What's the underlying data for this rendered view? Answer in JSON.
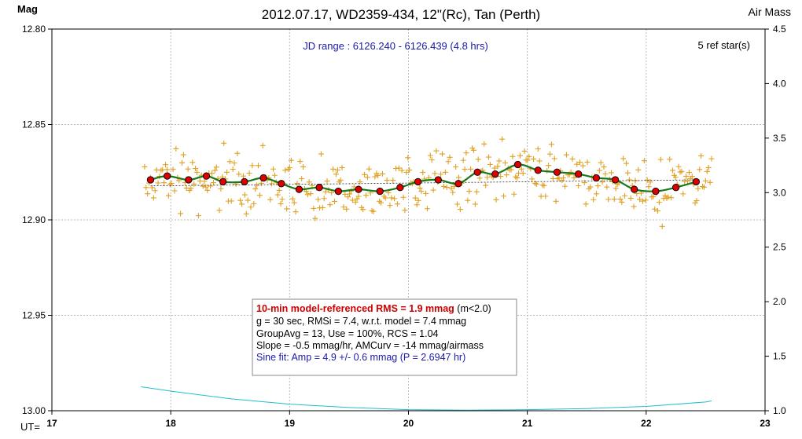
{
  "chart_data": {
    "type": "scatter",
    "title": "2012.07.17, WD2359-434, 12\"(Rc), Tan (Perth)",
    "ylabel": "Mag",
    "y2label": "Air Mass",
    "xlabel": "UT=",
    "xlim": [
      17,
      23
    ],
    "ylim": [
      12.8,
      13.0
    ],
    "y_inverted": true,
    "y2lim": [
      1.0,
      4.5
    ],
    "xticks": [
      "17",
      "18",
      "19",
      "20",
      "21",
      "22",
      "23"
    ],
    "yticks": [
      "12.80",
      "12.85",
      "12.90",
      "12.95",
      "13.00"
    ],
    "y2ticks": [
      "1.0",
      "1.5",
      "2.0",
      "2.5",
      "3.0",
      "3.5",
      "4.0",
      "4.5"
    ],
    "grid": true,
    "annotation_top": "JD range : 6126.240 - 6126.439 (4.8 hrs)",
    "annotation_right": "5 ref star(s)",
    "stats": {
      "line1_bold": "10-min model-referenced RMS = 1.9 mmag",
      "line1_rest": " (m<2.0)",
      "line2": "g = 30 sec, RMSi = 7.4, w.r.t. model = 7.4 mmag",
      "line3": "GroupAvg  = 13, Use = 100%, RCS = 1.04",
      "line4": "Slope = -0.5 mmag/hr, AMCurv  = -14 mmag/airmass",
      "line5": "Sine fit: Amp = 4.9 +/- 0.6 mmag (P = 2.6947  hr)"
    },
    "colors": {
      "points": "#e0a020",
      "group_avg": "#dd0000",
      "model_fit": "#1a7a1a",
      "trend": "#222222",
      "airmass": "#20c0c8",
      "stats_red": "#cc0000",
      "stats_blue": "#1a1aaa",
      "jd_text": "#1a1aaa"
    },
    "series": [
      {
        "kind": "group_averages",
        "x": [
          17.83,
          17.97,
          18.15,
          18.3,
          18.44,
          18.62,
          18.78,
          18.93,
          19.08,
          19.25,
          19.41,
          19.58,
          19.76,
          19.93,
          20.08,
          20.25,
          20.42,
          20.58,
          20.73,
          20.92,
          21.09,
          21.25,
          21.43,
          21.58,
          21.74,
          21.9,
          22.08,
          22.25,
          22.42
        ],
        "y": [
          12.879,
          12.877,
          12.879,
          12.877,
          12.88,
          12.88,
          12.878,
          12.881,
          12.884,
          12.883,
          12.885,
          12.884,
          12.885,
          12.883,
          12.88,
          12.879,
          12.881,
          12.875,
          12.876,
          12.871,
          12.874,
          12.875,
          12.876,
          12.878,
          12.879,
          12.884,
          12.885,
          12.883,
          12.88
        ]
      },
      {
        "kind": "airmass",
        "x": [
          17.75,
          18.0,
          18.5,
          19.0,
          19.5,
          20.0,
          20.5,
          21.0,
          21.5,
          22.0,
          22.5,
          22.55
        ],
        "y": [
          1.22,
          1.18,
          1.11,
          1.06,
          1.03,
          1.01,
          1.005,
          1.01,
          1.02,
          1.04,
          1.08,
          1.09
        ]
      }
    ]
  }
}
